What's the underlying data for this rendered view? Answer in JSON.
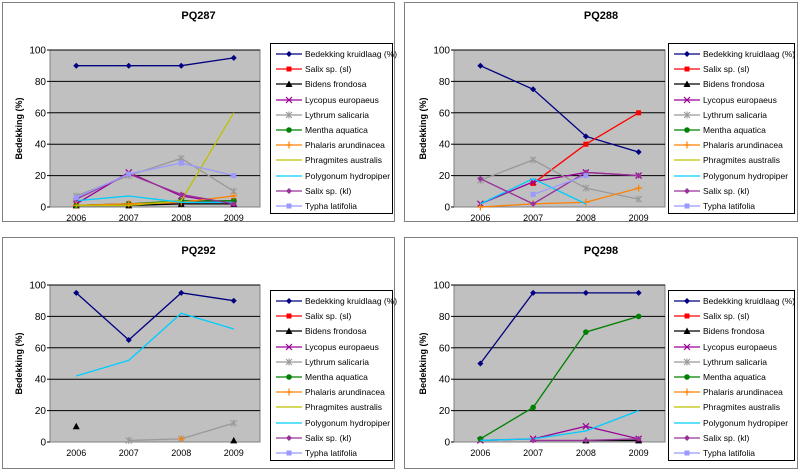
{
  "chart_data": [
    {
      "type": "line",
      "title": "PQ287",
      "ylabel": "Bedekking (%)",
      "ylim": [
        0,
        100
      ],
      "yticks": [
        "0",
        "20",
        "40",
        "60",
        "80",
        "100"
      ],
      "categories": [
        "2006",
        "2007",
        "2008",
        "2009"
      ],
      "series": [
        {
          "name": "Bedekking kruidlaag (%)",
          "values": [
            90,
            90,
            90,
            95
          ]
        },
        {
          "name": "Salix sp. (sl)",
          "values": [
            1,
            2,
            3,
            4
          ]
        },
        {
          "name": "Bidens frondosa",
          "values": [
            1,
            1,
            2,
            2
          ]
        },
        {
          "name": "Lycopus europaeus",
          "values": [
            2,
            22,
            7,
            2
          ]
        },
        {
          "name": "Lythrum salicaria",
          "values": [
            7,
            20,
            31,
            10
          ]
        },
        {
          "name": "Mentha aquatica",
          "values": [
            1,
            2,
            4,
            4
          ]
        },
        {
          "name": "Phalaris arundinacea",
          "values": [
            1,
            2,
            3,
            7
          ]
        },
        {
          "name": "Phragmites australis",
          "values": [
            1,
            1,
            4,
            60
          ]
        },
        {
          "name": "Polygonum hydropiper",
          "values": [
            4,
            7,
            3,
            3
          ]
        },
        {
          "name": "Salix sp. (kl)",
          "values": [
            5,
            21,
            8,
            2
          ]
        },
        {
          "name": "Typha latifolia",
          "values": [
            6,
            21,
            28,
            20
          ]
        }
      ]
    },
    {
      "type": "line",
      "title": "PQ288",
      "ylabel": "Bedekking (%)",
      "ylim": [
        0,
        100
      ],
      "yticks": [
        "0",
        "20",
        "40",
        "60",
        "80",
        "100"
      ],
      "categories": [
        "2006",
        "2007",
        "2008",
        "2009"
      ],
      "series": [
        {
          "name": "Bedekking kruidlaag (%)",
          "values": [
            90,
            75,
            45,
            35
          ]
        },
        {
          "name": "Salix sp. (sl)",
          "values": [
            null,
            15,
            40,
            60
          ]
        },
        {
          "name": "Bidens frondosa",
          "values": [
            null,
            null,
            null,
            null
          ]
        },
        {
          "name": "Lycopus europaeus",
          "values": [
            2,
            16,
            22,
            20
          ]
        },
        {
          "name": "Lythrum salicaria",
          "values": [
            17,
            30,
            12,
            5
          ]
        },
        {
          "name": "Mentha aquatica",
          "values": [
            null,
            null,
            null,
            null
          ]
        },
        {
          "name": "Phalaris arundinacea",
          "values": [
            0,
            2,
            3,
            12
          ]
        },
        {
          "name": "Phragmites australis",
          "values": [
            null,
            null,
            null,
            null
          ]
        },
        {
          "name": "Polygonum hydropiper",
          "values": [
            2,
            18,
            2,
            null
          ]
        },
        {
          "name": "Salix sp. (kl)",
          "values": [
            18,
            2,
            22,
            20
          ]
        },
        {
          "name": "Typha latifolia",
          "values": [
            null,
            8,
            20,
            null
          ]
        }
      ]
    },
    {
      "type": "line",
      "title": "PQ292",
      "ylabel": "Bedekking (%)",
      "ylim": [
        0,
        100
      ],
      "yticks": [
        "0",
        "20",
        "40",
        "60",
        "80",
        "100"
      ],
      "categories": [
        "2006",
        "2007",
        "2008",
        "2009"
      ],
      "series": [
        {
          "name": "Bedekking kruidlaag (%)",
          "values": [
            95,
            65,
            95,
            90
          ]
        },
        {
          "name": "Salix sp. (sl)",
          "values": [
            null,
            null,
            null,
            null
          ]
        },
        {
          "name": "Bidens frondosa",
          "values": [
            10,
            null,
            null,
            1
          ]
        },
        {
          "name": "Lycopus europaeus",
          "values": [
            null,
            null,
            null,
            null
          ]
        },
        {
          "name": "Lythrum salicaria",
          "values": [
            null,
            1,
            2,
            12
          ]
        },
        {
          "name": "Mentha aquatica",
          "values": [
            null,
            null,
            null,
            null
          ]
        },
        {
          "name": "Phalaris arundinacea",
          "values": [
            null,
            null,
            2,
            null
          ]
        },
        {
          "name": "Phragmites australis",
          "values": [
            null,
            null,
            null,
            null
          ]
        },
        {
          "name": "Polygonum hydropiper",
          "values": [
            42,
            52,
            82,
            72
          ]
        },
        {
          "name": "Salix sp. (kl)",
          "values": [
            null,
            null,
            null,
            null
          ]
        },
        {
          "name": "Typha latifolia",
          "values": [
            null,
            null,
            null,
            null
          ]
        }
      ]
    },
    {
      "type": "line",
      "title": "PQ298",
      "ylabel": "Bedekking (%)",
      "ylim": [
        0,
        100
      ],
      "yticks": [
        "0",
        "20",
        "40",
        "60",
        "80",
        "100"
      ],
      "categories": [
        "2006",
        "2007",
        "2008",
        "2009"
      ],
      "series": [
        {
          "name": "Bedekking kruidlaag (%)",
          "values": [
            50,
            95,
            95,
            95
          ]
        },
        {
          "name": "Salix sp. (sl)",
          "values": [
            null,
            null,
            null,
            null
          ]
        },
        {
          "name": "Bidens frondosa",
          "values": [
            null,
            null,
            1,
            1
          ]
        },
        {
          "name": "Lycopus europaeus",
          "values": [
            1,
            2,
            10,
            2
          ]
        },
        {
          "name": "Lythrum salicaria",
          "values": [
            null,
            null,
            null,
            null
          ]
        },
        {
          "name": "Mentha aquatica",
          "values": [
            2,
            22,
            70,
            80
          ]
        },
        {
          "name": "Phalaris arundinacea",
          "values": [
            null,
            null,
            null,
            null
          ]
        },
        {
          "name": "Phragmites australis",
          "values": [
            null,
            null,
            null,
            null
          ]
        },
        {
          "name": "Polygonum hydropiper",
          "values": [
            1,
            2,
            7,
            20
          ]
        },
        {
          "name": "Salix sp. (kl)",
          "values": [
            null,
            1,
            1,
            2
          ]
        },
        {
          "name": "Typha latifolia",
          "values": [
            null,
            null,
            null,
            null
          ]
        }
      ]
    }
  ],
  "series_style": [
    {
      "color": "#000080",
      "marker": "diamond"
    },
    {
      "color": "#ff0000",
      "marker": "square"
    },
    {
      "color": "#000000",
      "marker": "triangle"
    },
    {
      "color": "#990099",
      "marker": "x"
    },
    {
      "color": "#999999",
      "marker": "star"
    },
    {
      "color": "#008000",
      "marker": "circle"
    },
    {
      "color": "#ff8000",
      "marker": "plus"
    },
    {
      "color": "#c0c000",
      "marker": "none"
    },
    {
      "color": "#00ccff",
      "marker": "none"
    },
    {
      "color": "#993399",
      "marker": "diamond"
    },
    {
      "color": "#9999ff",
      "marker": "square"
    }
  ]
}
